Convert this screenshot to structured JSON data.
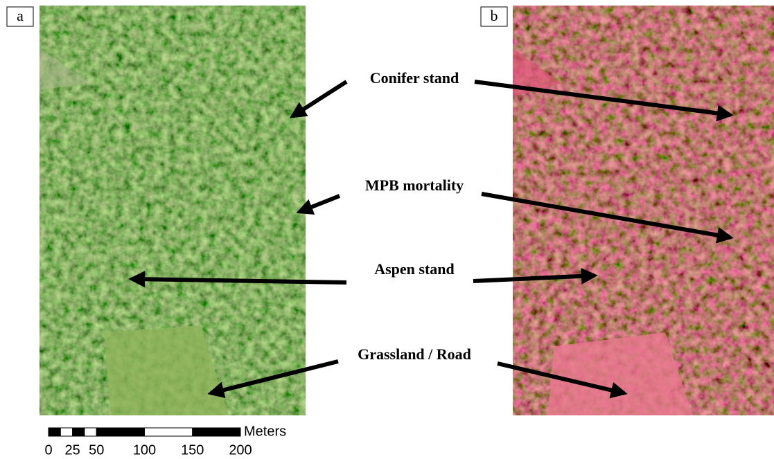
{
  "panels": [
    {
      "label": "a"
    },
    {
      "label": "b"
    }
  ],
  "annotations": [
    "Conifer stand",
    "MPB mortality",
    "Aspen stand",
    "Grassland / Road"
  ],
  "scale_bar": {
    "unit": "Meters",
    "ticks": [
      0,
      25,
      50,
      100,
      150,
      200
    ]
  }
}
